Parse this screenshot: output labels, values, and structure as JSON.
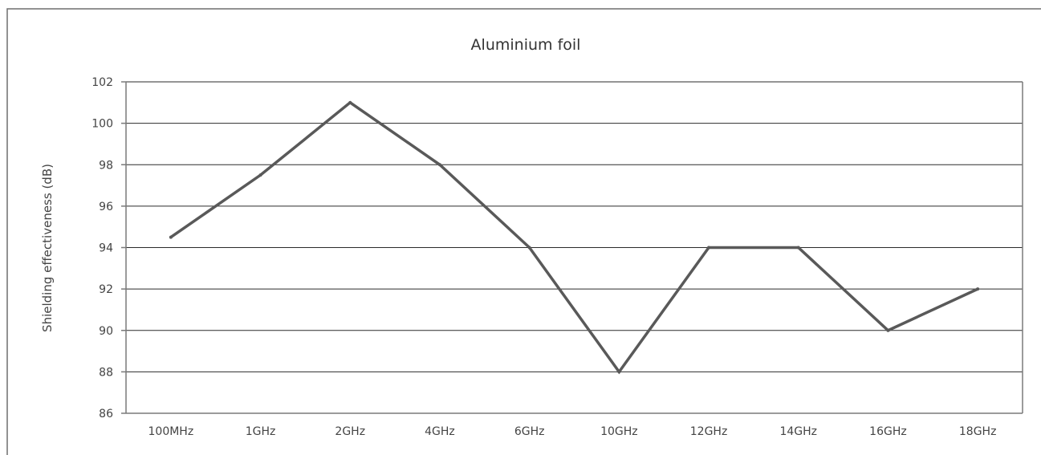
{
  "chart_data": {
    "type": "line",
    "title": "Aluminium foil",
    "xlabel": "",
    "ylabel": "Shielding effectiveness (dB)",
    "categories": [
      "100MHz",
      "1GHz",
      "2GHz",
      "4GHz",
      "6GHz",
      "10GHz",
      "12GHz",
      "14GHz",
      "16GHz",
      "18GHz"
    ],
    "series": [
      {
        "values": [
          94.5,
          97.5,
          101,
          98,
          94,
          88,
          94,
          94,
          90,
          92
        ]
      }
    ],
    "ylim": [
      86,
      102
    ],
    "yticks": [
      86,
      88,
      90,
      92,
      94,
      96,
      98,
      100,
      102
    ],
    "grid": "horizontal",
    "legend": "none",
    "colors": {
      "series": "#595959",
      "grid": "#2b2b2b",
      "axis": "#7a7a7a"
    }
  }
}
